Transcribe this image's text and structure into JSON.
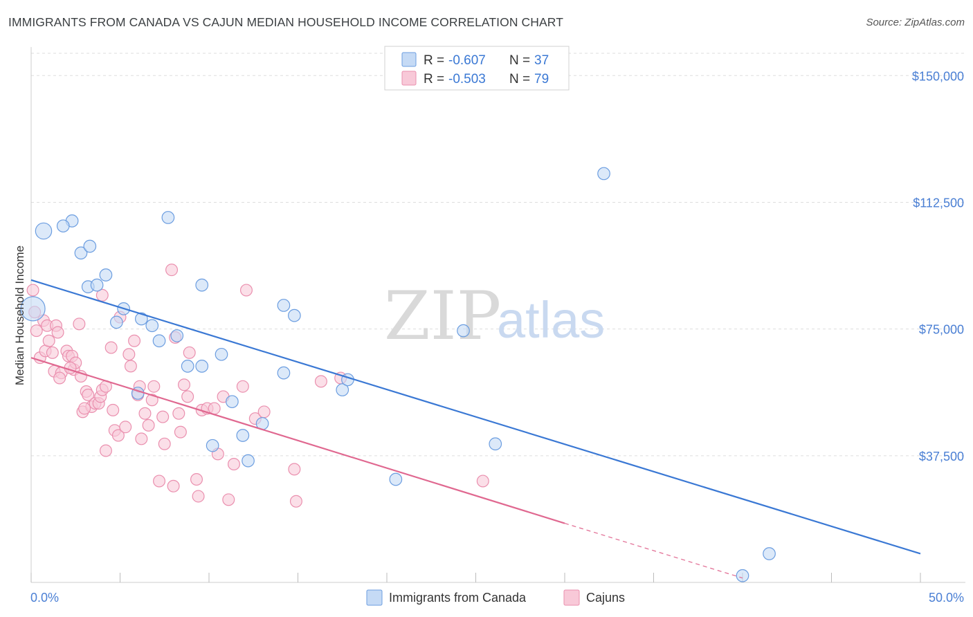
{
  "title": "IMMIGRANTS FROM CANADA VS CAJUN MEDIAN HOUSEHOLD INCOME CORRELATION CHART",
  "source": "Source: ZipAtlas.com",
  "watermark": {
    "zip": "ZIP",
    "atlas": "atlas"
  },
  "colors": {
    "blue_fill": "#c5daf5",
    "blue_stroke": "#6b9de0",
    "blue_line": "#3a78d4",
    "pink_fill": "#f8c9d8",
    "pink_stroke": "#ea8fae",
    "pink_line": "#e06890",
    "tick_label": "#4a7fd4",
    "grid": "#dddddd"
  },
  "stats_legend": [
    {
      "r_label": "R =",
      "r_value": "-0.607",
      "n_label": "N =",
      "n_value": "37"
    },
    {
      "r_label": "R =",
      "r_value": "-0.503",
      "n_label": "N =",
      "n_value": "79"
    }
  ],
  "chart_data": {
    "type": "scatter",
    "title": "IMMIGRANTS FROM CANADA VS CAJUN MEDIAN HOUSEHOLD INCOME CORRELATION CHART",
    "xlabel": "",
    "ylabel": "Median Household Income",
    "xlim": [
      0,
      50
    ],
    "ylim": [
      0,
      156000
    ],
    "x_tick_labels": [
      "0.0%",
      "50.0%"
    ],
    "y_ticks": [
      {
        "value": 37500,
        "label": "$37,500"
      },
      {
        "value": 75000,
        "label": "$75,000"
      },
      {
        "value": 112500,
        "label": "$112,500"
      },
      {
        "value": 150000,
        "label": "$150,000"
      }
    ],
    "grid": true,
    "legend_position": "bottom",
    "series": [
      {
        "name": "Immigrants from Canada",
        "trend": {
          "x": [
            0.0,
            50.0
          ],
          "y": [
            89500,
            8500
          ]
        },
        "points": [
          {
            "x": 0.1,
            "y": 81000,
            "s": 3
          },
          {
            "x": 0.7,
            "y": 104000,
            "s": 2
          },
          {
            "x": 2.3,
            "y": 107000,
            "s": 1.5
          },
          {
            "x": 1.8,
            "y": 105500,
            "s": 1.5
          },
          {
            "x": 2.8,
            "y": 97500,
            "s": 1.5
          },
          {
            "x": 3.3,
            "y": 99500,
            "s": 1.5
          },
          {
            "x": 3.2,
            "y": 87500,
            "s": 1.5
          },
          {
            "x": 3.7,
            "y": 88000,
            "s": 1.5
          },
          {
            "x": 4.2,
            "y": 91000,
            "s": 1.5
          },
          {
            "x": 5.2,
            "y": 81000,
            "s": 1.5
          },
          {
            "x": 4.8,
            "y": 77000,
            "s": 1.5
          },
          {
            "x": 6.2,
            "y": 78000,
            "s": 1.5
          },
          {
            "x": 6.8,
            "y": 76000,
            "s": 1.5
          },
          {
            "x": 7.2,
            "y": 71500,
            "s": 1.5
          },
          {
            "x": 8.2,
            "y": 73000,
            "s": 1.5
          },
          {
            "x": 7.7,
            "y": 108000,
            "s": 1.5
          },
          {
            "x": 9.6,
            "y": 88000,
            "s": 1.5
          },
          {
            "x": 8.8,
            "y": 64000,
            "s": 1.5
          },
          {
            "x": 9.6,
            "y": 64000,
            "s": 1.5
          },
          {
            "x": 10.7,
            "y": 67500,
            "s": 1.5
          },
          {
            "x": 11.3,
            "y": 53500,
            "s": 1.5
          },
          {
            "x": 10.2,
            "y": 40500,
            "s": 1.5
          },
          {
            "x": 11.9,
            "y": 43500,
            "s": 1.5
          },
          {
            "x": 12.2,
            "y": 36000,
            "s": 1.5
          },
          {
            "x": 13.0,
            "y": 47000,
            "s": 1.5
          },
          {
            "x": 14.2,
            "y": 62000,
            "s": 1.5
          },
          {
            "x": 14.2,
            "y": 82000,
            "s": 1.5
          },
          {
            "x": 14.8,
            "y": 79000,
            "s": 1.5
          },
          {
            "x": 17.5,
            "y": 57000,
            "s": 1.5
          },
          {
            "x": 17.8,
            "y": 60000,
            "s": 1.5
          },
          {
            "x": 6.0,
            "y": 56000,
            "s": 1.5
          },
          {
            "x": 20.5,
            "y": 30500,
            "s": 1.5
          },
          {
            "x": 24.3,
            "y": 74500,
            "s": 1.5
          },
          {
            "x": 26.1,
            "y": 41000,
            "s": 1.5
          },
          {
            "x": 32.2,
            "y": 121000,
            "s": 1.5
          },
          {
            "x": 41.5,
            "y": 8500,
            "s": 1.5
          },
          {
            "x": 40.0,
            "y": 2000,
            "s": 1.5
          }
        ]
      },
      {
        "name": "Cajuns",
        "trend": {
          "x": [
            0.0,
            30.0
          ],
          "y": [
            66500,
            17500
          ]
        },
        "trend_dashed": {
          "x": [
            30.0,
            40.0
          ],
          "y": [
            17500,
            1300
          ]
        },
        "points": [
          {
            "x": 0.1,
            "y": 86500,
            "s": 1.5
          },
          {
            "x": 0.2,
            "y": 80000,
            "s": 1.5
          },
          {
            "x": 0.3,
            "y": 74500,
            "s": 1.5
          },
          {
            "x": 0.5,
            "y": 66500,
            "s": 1.5
          },
          {
            "x": 0.7,
            "y": 77500,
            "s": 1.5
          },
          {
            "x": 0.9,
            "y": 76000,
            "s": 1.5
          },
          {
            "x": 0.8,
            "y": 68500,
            "s": 1.5
          },
          {
            "x": 1.0,
            "y": 71500,
            "s": 1.5
          },
          {
            "x": 1.2,
            "y": 68000,
            "s": 1.5
          },
          {
            "x": 1.4,
            "y": 76000,
            "s": 1.5
          },
          {
            "x": 1.5,
            "y": 74000,
            "s": 1.5
          },
          {
            "x": 1.3,
            "y": 62500,
            "s": 1.5
          },
          {
            "x": 1.7,
            "y": 62000,
            "s": 1.5
          },
          {
            "x": 1.6,
            "y": 60500,
            "s": 1.5
          },
          {
            "x": 2.0,
            "y": 68500,
            "s": 1.5
          },
          {
            "x": 2.1,
            "y": 67000,
            "s": 1.5
          },
          {
            "x": 2.3,
            "y": 67000,
            "s": 1.5
          },
          {
            "x": 2.4,
            "y": 63000,
            "s": 1.5
          },
          {
            "x": 2.5,
            "y": 65000,
            "s": 1.5
          },
          {
            "x": 2.7,
            "y": 76500,
            "s": 1.5
          },
          {
            "x": 2.8,
            "y": 61000,
            "s": 1.5
          },
          {
            "x": 2.9,
            "y": 50500,
            "s": 1.5
          },
          {
            "x": 3.1,
            "y": 56500,
            "s": 1.5
          },
          {
            "x": 3.2,
            "y": 55500,
            "s": 1.5
          },
          {
            "x": 3.4,
            "y": 52000,
            "s": 1.5
          },
          {
            "x": 3.6,
            "y": 53000,
            "s": 1.5
          },
          {
            "x": 3.8,
            "y": 53000,
            "s": 1.5
          },
          {
            "x": 3.9,
            "y": 55000,
            "s": 1.5
          },
          {
            "x": 4.0,
            "y": 57000,
            "s": 1.5
          },
          {
            "x": 4.0,
            "y": 85000,
            "s": 1.5
          },
          {
            "x": 4.2,
            "y": 58000,
            "s": 1.5
          },
          {
            "x": 4.2,
            "y": 39000,
            "s": 1.5
          },
          {
            "x": 4.5,
            "y": 69500,
            "s": 1.5
          },
          {
            "x": 4.6,
            "y": 51000,
            "s": 1.5
          },
          {
            "x": 4.7,
            "y": 45000,
            "s": 1.5
          },
          {
            "x": 4.9,
            "y": 43500,
            "s": 1.5
          },
          {
            "x": 5.0,
            "y": 78500,
            "s": 1.5
          },
          {
            "x": 5.3,
            "y": 46000,
            "s": 1.5
          },
          {
            "x": 5.5,
            "y": 67500,
            "s": 1.5
          },
          {
            "x": 5.6,
            "y": 64000,
            "s": 1.5
          },
          {
            "x": 5.8,
            "y": 71500,
            "s": 1.5
          },
          {
            "x": 6.0,
            "y": 55500,
            "s": 1.5
          },
          {
            "x": 6.1,
            "y": 58000,
            "s": 1.5
          },
          {
            "x": 6.2,
            "y": 42500,
            "s": 1.5
          },
          {
            "x": 6.4,
            "y": 50000,
            "s": 1.5
          },
          {
            "x": 6.6,
            "y": 46500,
            "s": 1.5
          },
          {
            "x": 6.8,
            "y": 54000,
            "s": 1.5
          },
          {
            "x": 6.9,
            "y": 58000,
            "s": 1.5
          },
          {
            "x": 7.2,
            "y": 30000,
            "s": 1.5
          },
          {
            "x": 7.4,
            "y": 49000,
            "s": 1.5
          },
          {
            "x": 7.5,
            "y": 41000,
            "s": 1.5
          },
          {
            "x": 7.9,
            "y": 92500,
            "s": 1.5
          },
          {
            "x": 8.0,
            "y": 28500,
            "s": 1.5
          },
          {
            "x": 8.1,
            "y": 72500,
            "s": 1.5
          },
          {
            "x": 8.3,
            "y": 50000,
            "s": 1.5
          },
          {
            "x": 8.4,
            "y": 44500,
            "s": 1.5
          },
          {
            "x": 8.6,
            "y": 58500,
            "s": 1.5
          },
          {
            "x": 8.8,
            "y": 55000,
            "s": 1.5
          },
          {
            "x": 8.9,
            "y": 68000,
            "s": 1.5
          },
          {
            "x": 9.3,
            "y": 30500,
            "s": 1.5
          },
          {
            "x": 9.4,
            "y": 25500,
            "s": 1.5
          },
          {
            "x": 9.6,
            "y": 51000,
            "s": 1.5
          },
          {
            "x": 9.9,
            "y": 51500,
            "s": 1.5
          },
          {
            "x": 10.3,
            "y": 51500,
            "s": 1.5
          },
          {
            "x": 10.5,
            "y": 38000,
            "s": 1.5
          },
          {
            "x": 10.8,
            "y": 55000,
            "s": 1.5
          },
          {
            "x": 11.1,
            "y": 24500,
            "s": 1.5
          },
          {
            "x": 11.4,
            "y": 35000,
            "s": 1.5
          },
          {
            "x": 11.9,
            "y": 58000,
            "s": 1.5
          },
          {
            "x": 12.1,
            "y": 86500,
            "s": 1.5
          },
          {
            "x": 12.6,
            "y": 48500,
            "s": 1.5
          },
          {
            "x": 13.1,
            "y": 50500,
            "s": 1.5
          },
          {
            "x": 14.8,
            "y": 33500,
            "s": 1.5
          },
          {
            "x": 14.9,
            "y": 24000,
            "s": 1.5
          },
          {
            "x": 16.3,
            "y": 59500,
            "s": 1.5
          },
          {
            "x": 17.4,
            "y": 60500,
            "s": 1.5
          },
          {
            "x": 25.4,
            "y": 30000,
            "s": 1.5
          },
          {
            "x": 2.2,
            "y": 63500,
            "s": 1.5
          },
          {
            "x": 3.0,
            "y": 51500,
            "s": 1.5
          }
        ]
      }
    ]
  }
}
